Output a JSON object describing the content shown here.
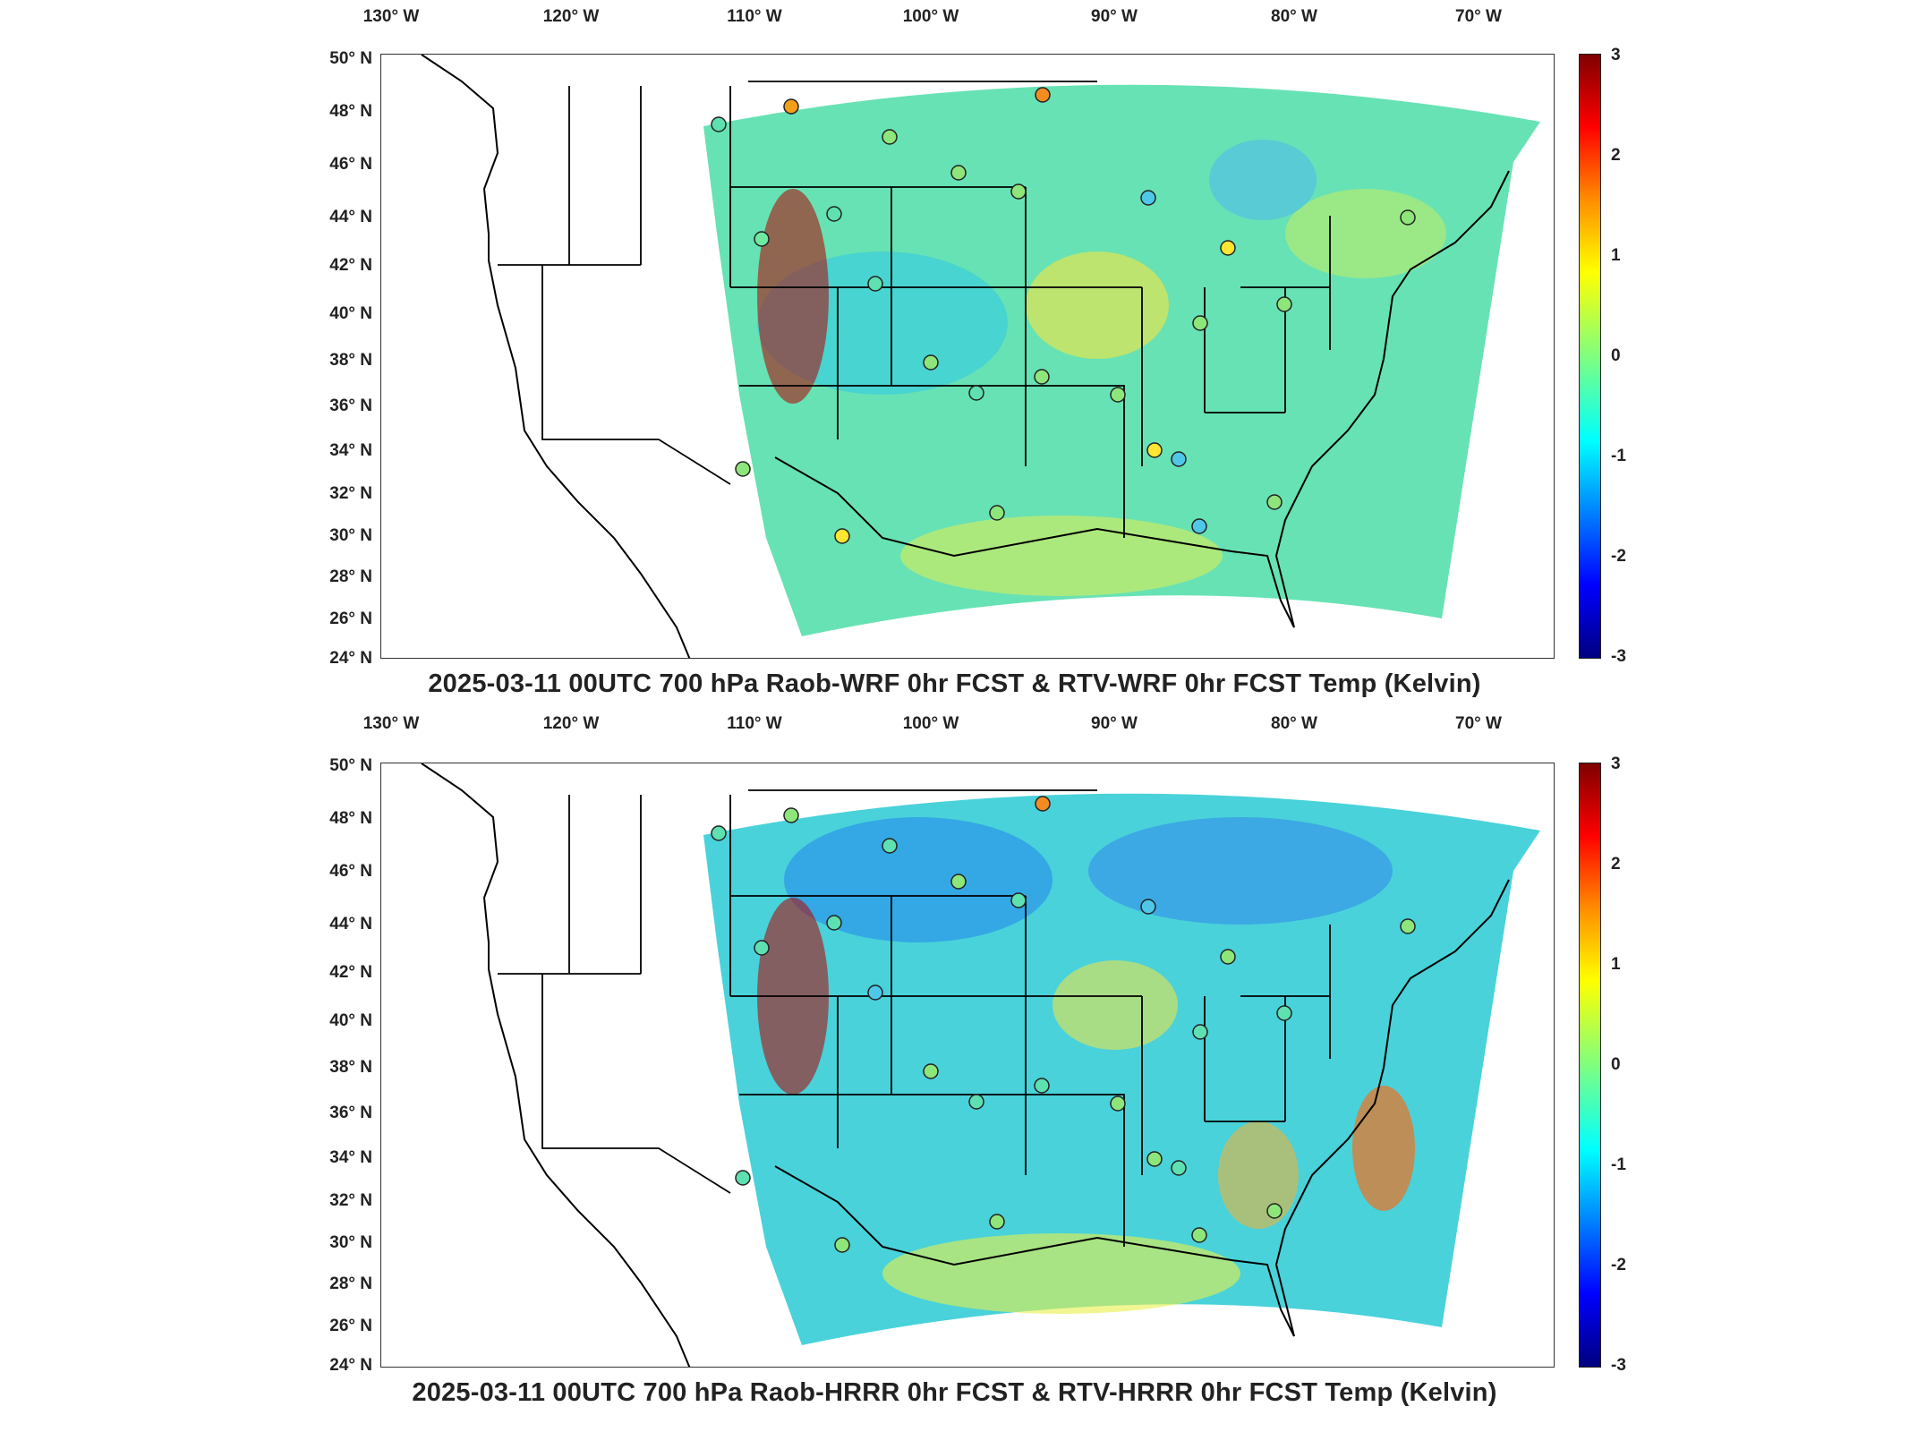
{
  "lon_labels": [
    "130° W",
    "120° W",
    "110° W",
    "100° W",
    "90° W",
    "80° W",
    "70° W"
  ],
  "lat_labels": [
    "50° N",
    "48° N",
    "46° N",
    "44° N",
    "42° N",
    "40° N",
    "38° N",
    "36° N",
    "34° N",
    "32° N",
    "30° N",
    "28° N",
    "26° N",
    "24° N"
  ],
  "colorbar": {
    "ticks": [
      "3",
      "2",
      "1",
      "0",
      "-1",
      "-2",
      "-3"
    ],
    "range": [
      -3,
      3
    ],
    "colormap": "jet"
  },
  "colors": {
    "field_base": "#5fe0b0",
    "border_line": "#000000",
    "station_edge": "#222222"
  },
  "panels": [
    {
      "title": "2025-03-11 00UTC 700 hPa Raob-WRF 0hr FCST & RTV-WRF 0hr FCST Temp (Kelvin)"
    },
    {
      "title": "2025-03-11 00UTC 700 hPa Raob-HRRR 0hr FCST & RTV-HRRR 0hr FCST Temp (Kelvin)"
    }
  ]
}
